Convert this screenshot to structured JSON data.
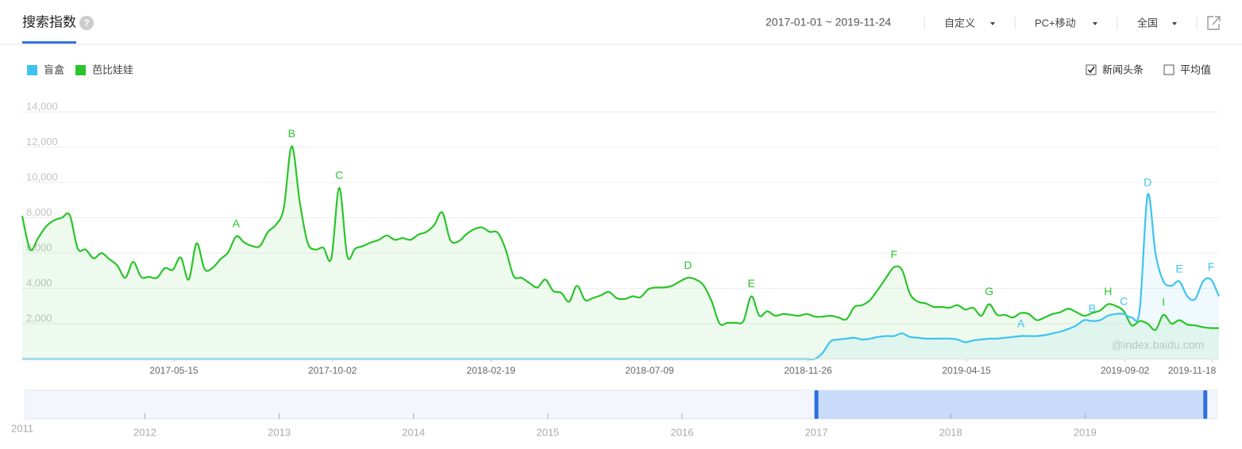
{
  "header": {
    "tab": "搜索指数",
    "date_range": "2017-01-01 ~ 2019-11-24",
    "dropdowns": [
      "自定义",
      "PC+移动",
      "全国"
    ]
  },
  "toggles": [
    {
      "label": "新闻头条",
      "checked": true
    },
    {
      "label": "平均值",
      "checked": false
    }
  ],
  "chart_data": {
    "type": "line",
    "x": [
      "2017-01-01",
      "2017-01-08",
      "2017-01-15",
      "2017-01-22",
      "2017-01-29",
      "2017-02-05",
      "2017-02-12",
      "2017-02-19",
      "2017-02-26",
      "2017-03-05",
      "2017-03-12",
      "2017-03-19",
      "2017-03-26",
      "2017-04-02",
      "2017-04-09",
      "2017-04-16",
      "2017-04-23",
      "2017-04-30",
      "2017-05-07",
      "2017-05-14",
      "2017-05-21",
      "2017-05-28",
      "2017-06-04",
      "2017-06-11",
      "2017-06-18",
      "2017-06-25",
      "2017-07-02",
      "2017-07-09",
      "2017-07-16",
      "2017-07-23",
      "2017-07-30",
      "2017-08-06",
      "2017-08-13",
      "2017-08-20",
      "2017-08-27",
      "2017-09-03",
      "2017-09-10",
      "2017-09-17",
      "2017-09-24",
      "2017-10-01",
      "2017-10-08",
      "2017-10-15",
      "2017-10-22",
      "2017-10-29",
      "2017-11-05",
      "2017-11-12",
      "2017-11-19",
      "2017-11-26",
      "2017-12-03",
      "2017-12-10",
      "2017-12-17",
      "2017-12-24",
      "2017-12-31",
      "2018-01-07",
      "2018-01-14",
      "2018-01-21",
      "2018-01-28",
      "2018-02-04",
      "2018-02-11",
      "2018-02-18",
      "2018-02-25",
      "2018-03-04",
      "2018-03-11",
      "2018-03-18",
      "2018-03-25",
      "2018-04-01",
      "2018-04-08",
      "2018-04-15",
      "2018-04-22",
      "2018-04-29",
      "2018-05-06",
      "2018-05-13",
      "2018-05-20",
      "2018-05-27",
      "2018-06-03",
      "2018-06-10",
      "2018-06-17",
      "2018-06-24",
      "2018-07-01",
      "2018-07-08",
      "2018-07-15",
      "2018-07-22",
      "2018-07-29",
      "2018-08-05",
      "2018-08-12",
      "2018-08-19",
      "2018-08-26",
      "2018-09-02",
      "2018-09-09",
      "2018-09-16",
      "2018-09-23",
      "2018-09-30",
      "2018-10-07",
      "2018-10-14",
      "2018-10-21",
      "2018-10-28",
      "2018-11-04",
      "2018-11-11",
      "2018-11-18",
      "2018-11-25",
      "2018-12-02",
      "2018-12-09",
      "2018-12-16",
      "2018-12-23",
      "2018-12-30",
      "2019-01-06",
      "2019-01-13",
      "2019-01-20",
      "2019-01-27",
      "2019-02-03",
      "2019-02-10",
      "2019-02-17",
      "2019-02-24",
      "2019-03-03",
      "2019-03-10",
      "2019-03-17",
      "2019-03-24",
      "2019-03-31",
      "2019-04-07",
      "2019-04-14",
      "2019-04-21",
      "2019-04-28",
      "2019-05-05",
      "2019-05-12",
      "2019-05-19",
      "2019-05-26",
      "2019-06-02",
      "2019-06-09",
      "2019-06-16",
      "2019-06-23",
      "2019-06-30",
      "2019-07-07",
      "2019-07-14",
      "2019-07-21",
      "2019-07-28",
      "2019-08-04",
      "2019-08-11",
      "2019-08-18",
      "2019-08-25",
      "2019-09-01",
      "2019-09-08",
      "2019-09-15",
      "2019-09-22",
      "2019-09-29",
      "2019-10-06",
      "2019-10-13",
      "2019-10-20",
      "2019-10-27",
      "2019-11-03",
      "2019-11-10",
      "2019-11-17",
      "2019-11-24"
    ],
    "series": [
      {
        "name": "盲盒",
        "color": "#3ec3f0",
        "values": [
          0,
          0,
          0,
          0,
          0,
          0,
          0,
          0,
          0,
          0,
          0,
          0,
          0,
          0,
          0,
          0,
          0,
          0,
          0,
          0,
          0,
          0,
          0,
          0,
          0,
          0,
          0,
          0,
          0,
          0,
          0,
          0,
          0,
          0,
          0,
          0,
          0,
          0,
          0,
          0,
          0,
          0,
          0,
          0,
          0,
          0,
          0,
          0,
          0,
          0,
          0,
          0,
          0,
          0,
          0,
          0,
          0,
          0,
          0,
          0,
          0,
          0,
          0,
          0,
          0,
          0,
          0,
          0,
          0,
          0,
          0,
          0,
          0,
          0,
          0,
          0,
          0,
          0,
          0,
          0,
          0,
          0,
          0,
          0,
          0,
          0,
          0,
          0,
          0,
          0,
          0,
          0,
          0,
          0,
          0,
          0,
          0,
          0,
          0,
          0,
          0,
          350,
          1000,
          1100,
          1150,
          1200,
          1100,
          1150,
          1250,
          1300,
          1300,
          1450,
          1250,
          1200,
          1150,
          1150,
          1150,
          1150,
          1100,
          950,
          1050,
          1100,
          1150,
          1150,
          1200,
          1250,
          1300,
          1300,
          1300,
          1350,
          1450,
          1550,
          1700,
          1900,
          2200,
          2150,
          2200,
          2450,
          2550,
          2550,
          2350,
          2800,
          9300,
          5950,
          4400,
          4150,
          4400,
          3550,
          3400,
          4400,
          4500,
          3550
        ]
      },
      {
        "name": "芭比娃娃",
        "color": "#2bc42b",
        "values": [
          8100,
          6200,
          6850,
          7500,
          7850,
          8000,
          8150,
          6250,
          6200,
          5700,
          6000,
          5650,
          5300,
          4600,
          5500,
          4650,
          4650,
          4600,
          5150,
          5050,
          5750,
          4500,
          6550,
          5100,
          5150,
          5650,
          6050,
          6950,
          6600,
          6400,
          6400,
          7200,
          7600,
          8550,
          12050,
          8950,
          6600,
          6200,
          6300,
          5700,
          9700,
          5850,
          6250,
          6400,
          6600,
          6750,
          7000,
          6750,
          6850,
          6750,
          7050,
          7200,
          7600,
          8300,
          6750,
          6650,
          7050,
          7350,
          7450,
          7200,
          7150,
          6200,
          4700,
          4600,
          4300,
          4050,
          4500,
          3850,
          3750,
          3250,
          4150,
          3350,
          3450,
          3600,
          3800,
          3450,
          3400,
          3550,
          3500,
          3950,
          4050,
          4050,
          4150,
          4400,
          4600,
          4500,
          4150,
          3250,
          2000,
          2050,
          2050,
          2150,
          3550,
          2450,
          2700,
          2450,
          2550,
          2500,
          2450,
          2550,
          2400,
          2400,
          2450,
          2350,
          2250,
          2950,
          3050,
          3350,
          3950,
          4600,
          5200,
          5050,
          3700,
          3250,
          3150,
          2950,
          2950,
          2900,
          3050,
          2800,
          2900,
          2450,
          3100,
          2500,
          2500,
          2350,
          2600,
          2550,
          2200,
          2350,
          2550,
          2650,
          2850,
          2650,
          2450,
          2600,
          2750,
          3100,
          3000,
          2700,
          1900,
          2150,
          2000,
          1650,
          2500,
          2000,
          2200,
          1950,
          1900,
          1800,
          1750,
          1750
        ]
      }
    ],
    "xlim": [
      "2017-01-01",
      "2019-11-24"
    ],
    "xticks": [
      "2017-05-15",
      "2017-10-02",
      "2018-02-19",
      "2018-07-09",
      "2018-11-26",
      "2019-04-15",
      "2019-09-02",
      "2019-11-18"
    ],
    "ylim": [
      0,
      14000
    ],
    "yticks": [
      {
        "value": 2000,
        "label": "2,000"
      },
      {
        "value": 4000,
        "label": "4,000"
      },
      {
        "value": 6000,
        "label": "6,000"
      },
      {
        "value": 8000,
        "label": "8,000"
      },
      {
        "value": 10000,
        "label": "10,000"
      },
      {
        "value": 12000,
        "label": "12,000"
      },
      {
        "value": 14000,
        "label": "14,000"
      }
    ],
    "grid": true,
    "annotations": [
      {
        "label": "A",
        "x": "2017-07-09",
        "series": 1
      },
      {
        "label": "B",
        "x": "2017-08-27",
        "series": 1
      },
      {
        "label": "C",
        "x": "2017-10-08",
        "series": 1
      },
      {
        "label": "D",
        "x": "2018-08-12",
        "series": 1
      },
      {
        "label": "E",
        "x": "2018-10-07",
        "series": 1
      },
      {
        "label": "F",
        "x": "2019-02-10",
        "series": 1
      },
      {
        "label": "G",
        "x": "2019-05-05",
        "series": 1
      },
      {
        "label": "H",
        "x": "2019-08-18",
        "series": 1
      },
      {
        "label": "I",
        "x": "2019-10-06",
        "series": 1
      },
      {
        "label": "A",
        "x": "2019-06-02",
        "series": 0
      },
      {
        "label": "B",
        "x": "2019-08-04",
        "series": 0
      },
      {
        "label": "C",
        "x": "2019-09-01",
        "series": 0
      },
      {
        "label": "D",
        "x": "2019-09-22",
        "series": 0
      },
      {
        "label": "E",
        "x": "2019-10-20",
        "series": 0
      },
      {
        "label": "F",
        "x": "2019-11-17",
        "series": 0
      }
    ],
    "watermark": "@index.baidu.com"
  },
  "navigator": {
    "xlim": [
      2011.11,
      2019.98
    ],
    "xticks": [
      2011,
      2012,
      2013,
      2014,
      2015,
      2016,
      2017,
      2018,
      2019
    ],
    "selection": [
      "2017-01-01",
      "2019-11-24"
    ]
  }
}
